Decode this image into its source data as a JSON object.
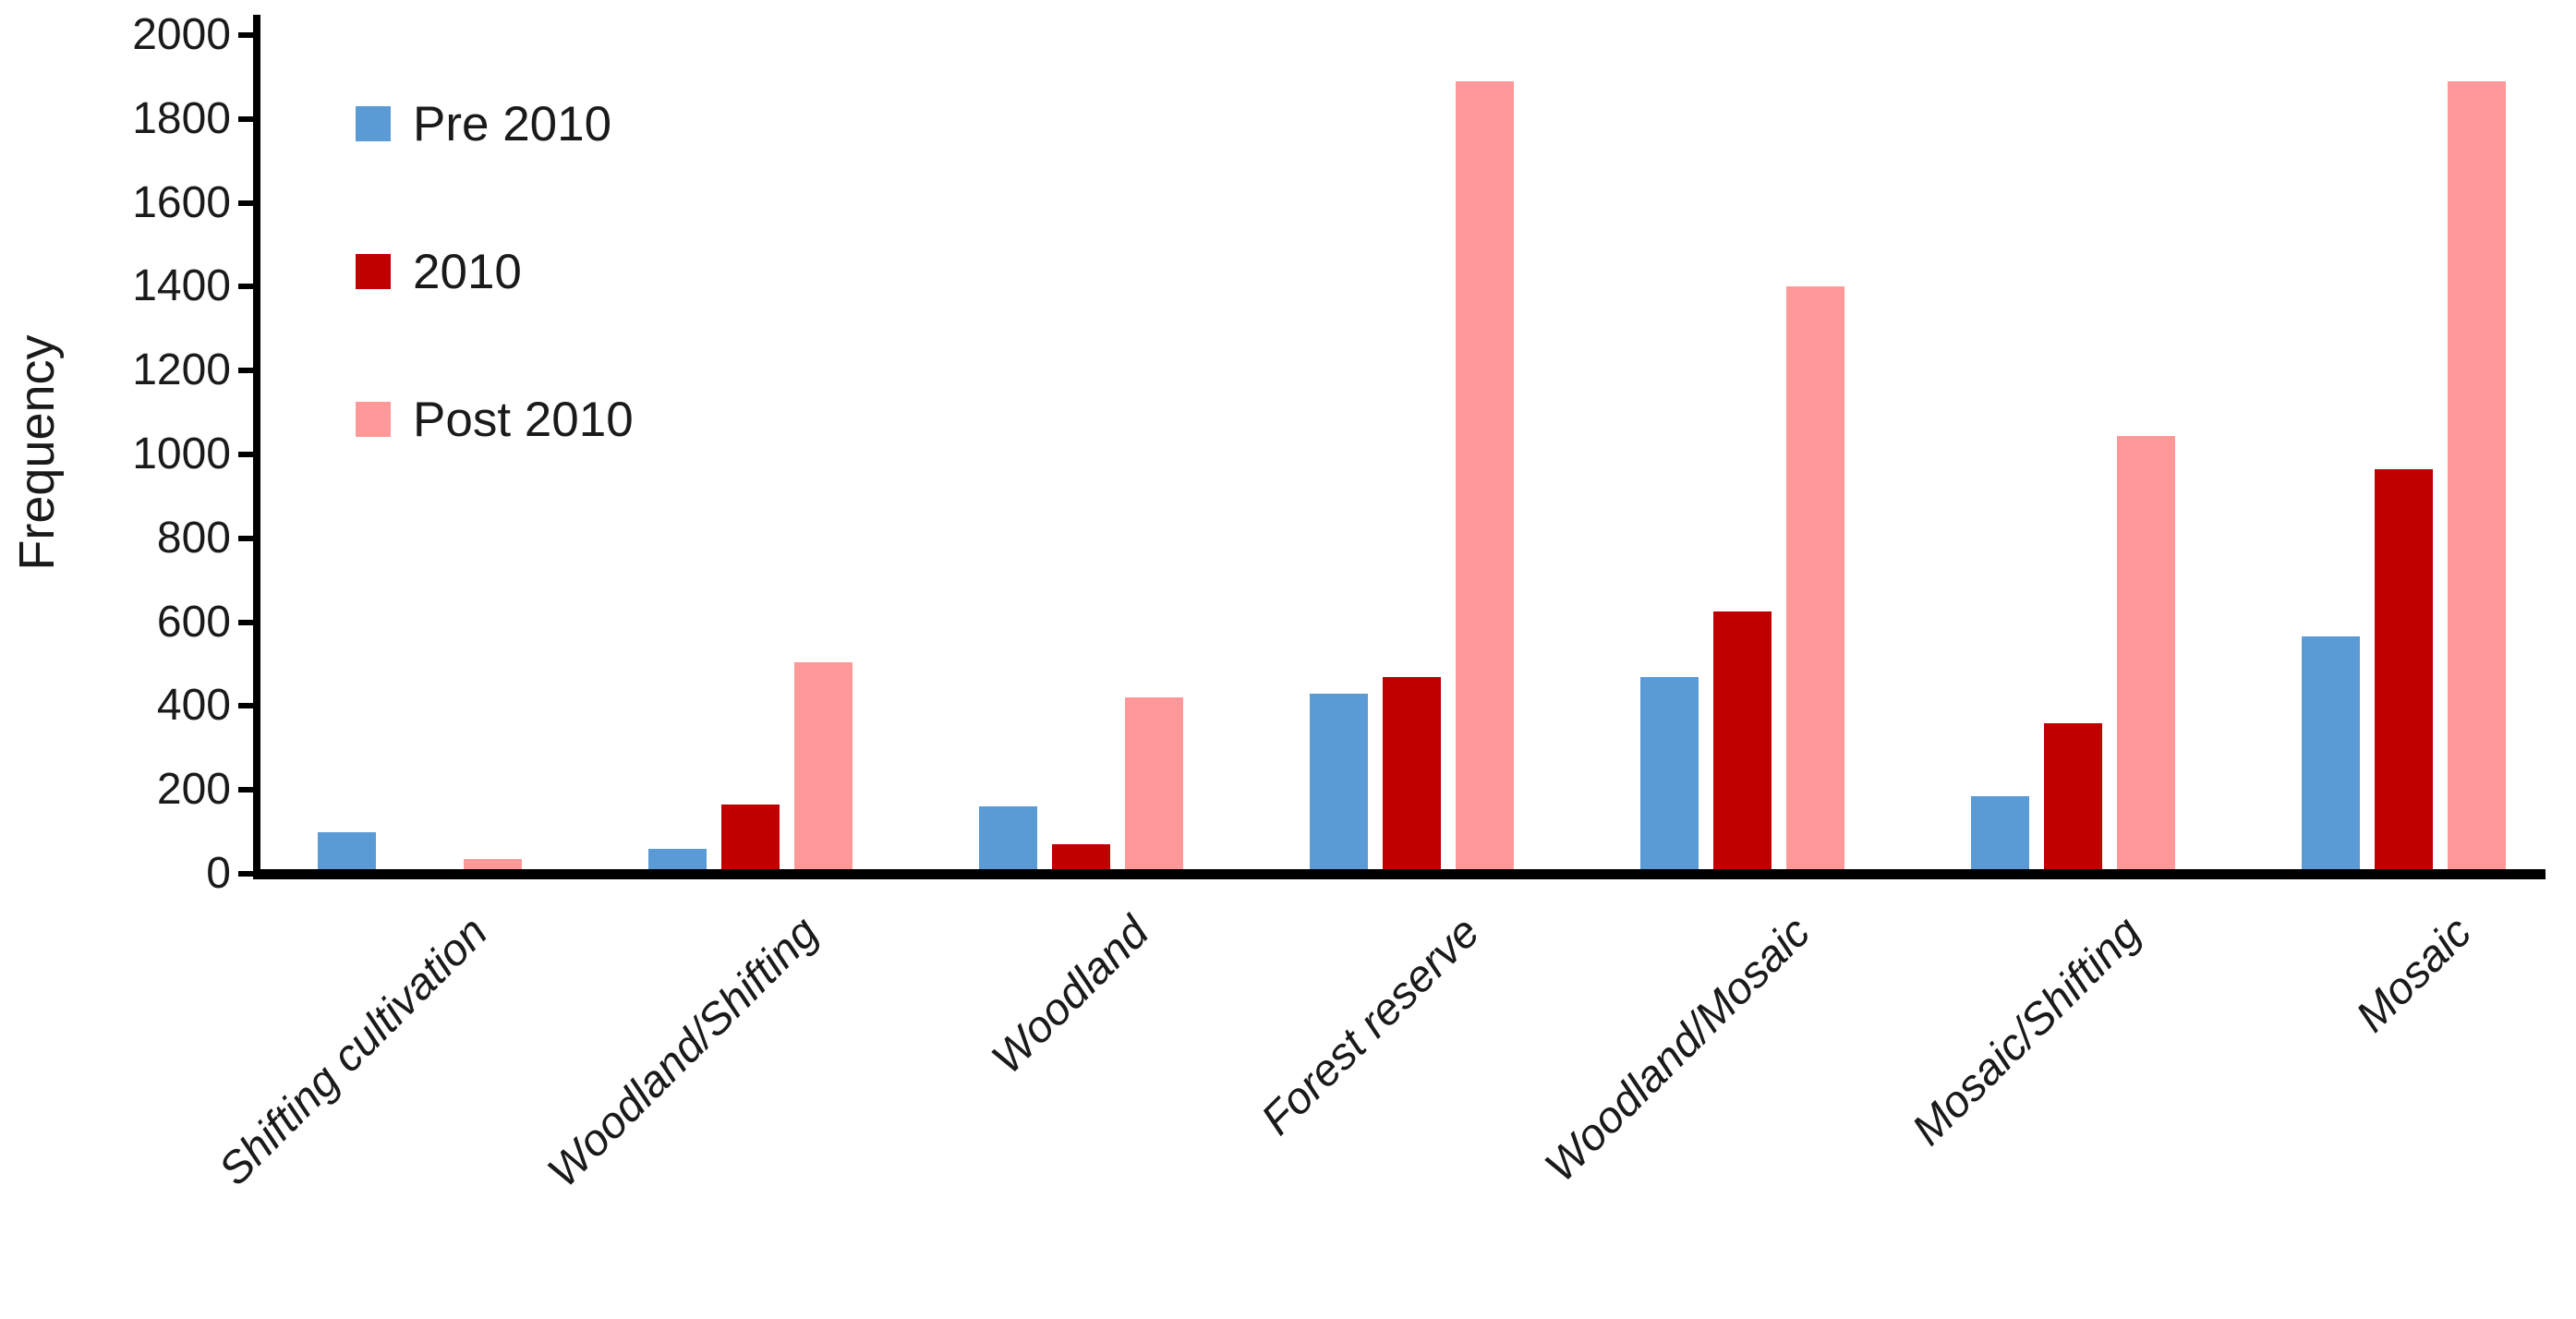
{
  "figure": {
    "background": "#ffffff",
    "axis_color": "#000000",
    "text_color": "#1a1a1a"
  },
  "chart_data": {
    "type": "bar",
    "title": "",
    "xlabel": "",
    "ylabel": "Frequency",
    "ylim": [
      0,
      2000
    ],
    "ytick_step": 200,
    "grid": false,
    "legend_position": "top-left-inside",
    "categories": [
      "Shifting cultivation",
      "Woodland/Shifting",
      "Woodland",
      "Forest reserve",
      "Woodland/Mosaic",
      "Mosaic/Shifting",
      "Mosaic"
    ],
    "series": [
      {
        "name": "Pre 2010",
        "color": "#5B9BD5",
        "values": [
          100,
          60,
          160,
          430,
          470,
          185,
          565
        ]
      },
      {
        "name": "2010",
        "color": "#C00000",
        "values": [
          0,
          165,
          70,
          470,
          625,
          360,
          965
        ]
      },
      {
        "name": "Post 2010",
        "color": "#FF9999",
        "values": [
          35,
          505,
          420,
          1890,
          1400,
          1045,
          1890
        ]
      }
    ]
  }
}
